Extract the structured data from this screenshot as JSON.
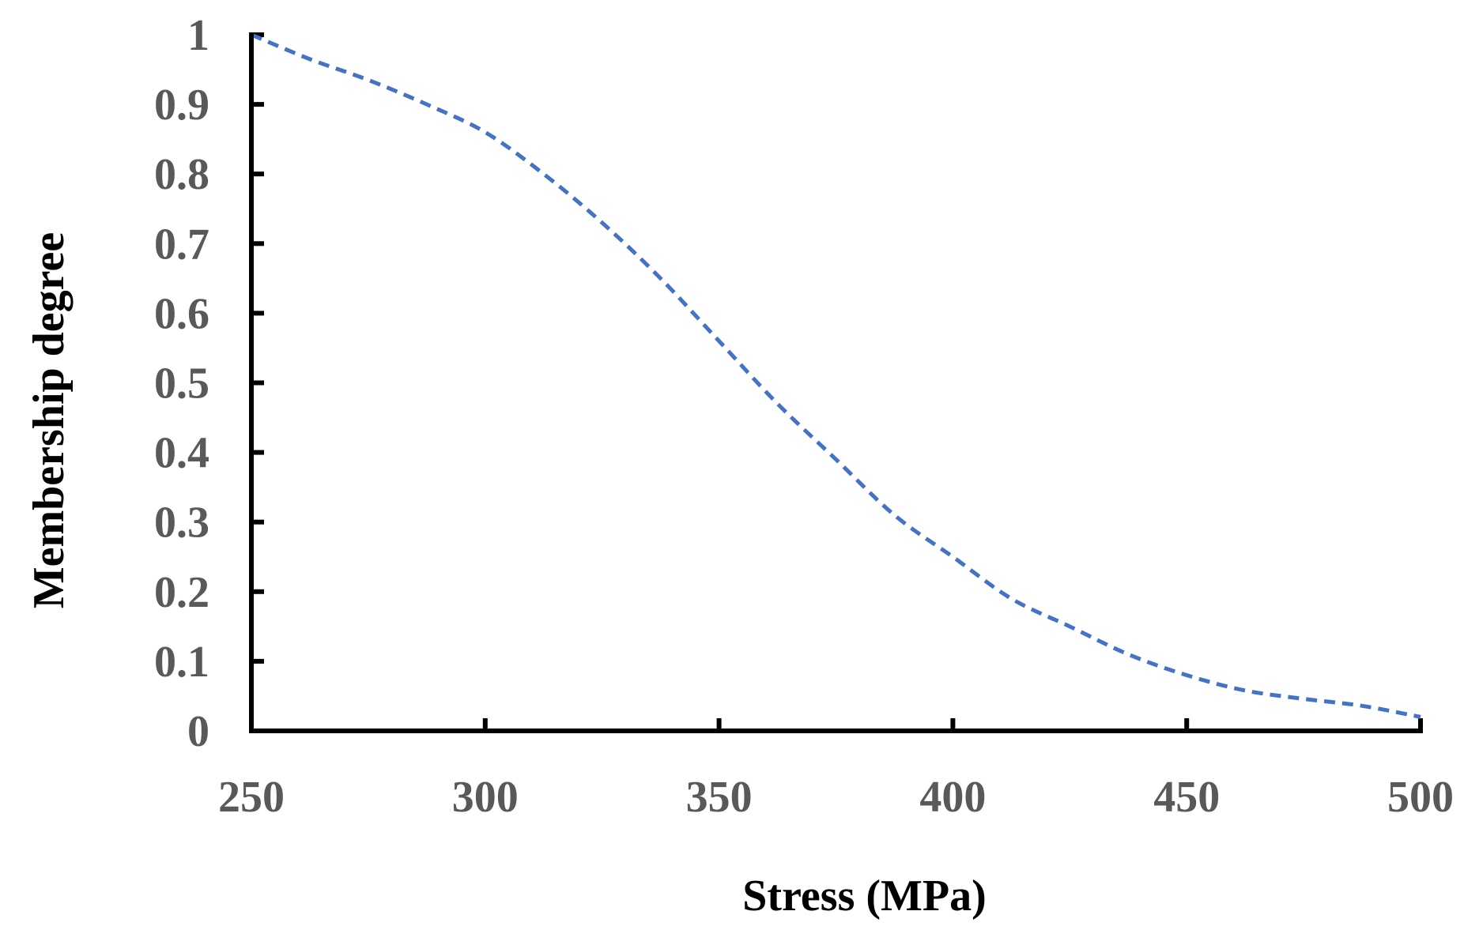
{
  "chart_data": {
    "type": "line",
    "title": "",
    "xlabel": "Stress (MPa)",
    "ylabel": "Membership degree",
    "xlim": [
      250,
      500
    ],
    "ylim": [
      0,
      1
    ],
    "x_ticks": [
      250,
      300,
      350,
      400,
      450,
      500
    ],
    "x_tick_labels": [
      "250",
      "300",
      "350",
      "400",
      "450",
      "500"
    ],
    "y_ticks": [
      0,
      0.1,
      0.2,
      0.3,
      0.4,
      0.5,
      0.6,
      0.7,
      0.8,
      0.9,
      1
    ],
    "y_tick_labels": [
      "0",
      "0.1",
      "0.2",
      "0.3",
      "0.4",
      "0.5",
      "0.6",
      "0.7",
      "0.8",
      "0.9",
      "1"
    ],
    "grid": false,
    "legend": "none",
    "series": [
      {
        "name": "Membership degree",
        "style": "dashed",
        "color": "#4472C4",
        "x": [
          250,
          262.5,
          275,
          287.5,
          300,
          312.5,
          325,
          337.5,
          350,
          362.5,
          375,
          387.5,
          400,
          412.5,
          425,
          437.5,
          450,
          462.5,
          475,
          487.5,
          500
        ],
        "y": [
          1.0,
          0.965,
          0.935,
          0.9,
          0.86,
          0.8,
          0.73,
          0.65,
          0.56,
          0.47,
          0.39,
          0.31,
          0.25,
          0.19,
          0.15,
          0.11,
          0.08,
          0.058,
          0.046,
          0.036,
          0.02
        ]
      }
    ],
    "colors": {
      "axis": "#000000",
      "tick_label": "#595959",
      "title": "#000000"
    }
  }
}
